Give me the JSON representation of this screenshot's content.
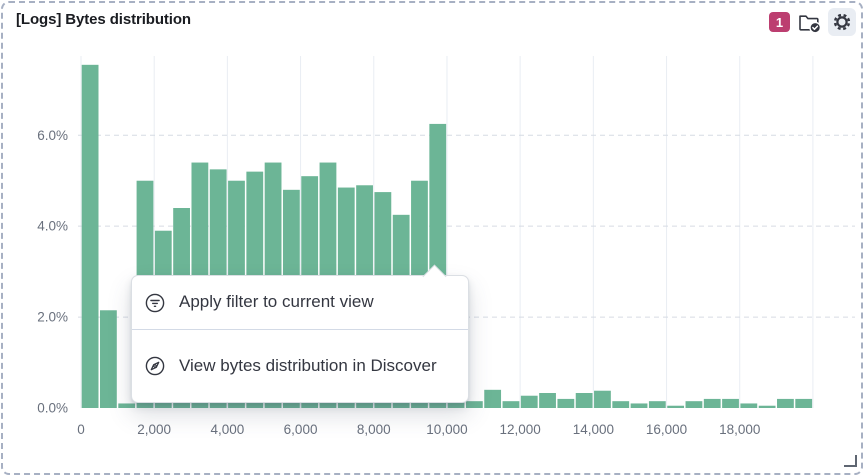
{
  "panel": {
    "title": "[Logs] Bytes distribution",
    "badge_count": "1"
  },
  "context_menu": {
    "items": [
      {
        "icon": "filter-icon",
        "label": "Apply filter to current view"
      },
      {
        "icon": "compass-icon",
        "label": "View bytes distribution in Discover"
      }
    ]
  },
  "colors": {
    "bar": "#6cb596",
    "badge_bg": "#bc3e70",
    "icon_dark": "#343741",
    "axis_text": "#69707d",
    "grid_vertical": "#e9edf3",
    "grid_horizontal": "#d6dbe4",
    "menu_text": "#343741",
    "divider": "#d3dae6",
    "dashed_border": "#a7b0c3"
  },
  "chart_data": {
    "type": "bar",
    "title": "[Logs] Bytes distribution",
    "xlabel": "",
    "ylabel": "",
    "bin_width": 500,
    "x": [
      0,
      500,
      1000,
      1500,
      2000,
      2500,
      3000,
      3500,
      4000,
      4500,
      5000,
      5500,
      6000,
      6500,
      7000,
      7500,
      8000,
      8500,
      9000,
      9500,
      10000,
      10500,
      11000,
      11500,
      12000,
      12500,
      13000,
      13500,
      14000,
      14500,
      15000,
      15500,
      16000,
      16500,
      17000,
      17500,
      18000,
      18500,
      19000,
      19500
    ],
    "values": [
      7.55,
      2.15,
      0.1,
      5.0,
      3.9,
      4.4,
      5.4,
      5.25,
      5.0,
      5.2,
      5.4,
      4.8,
      5.1,
      5.4,
      4.85,
      4.9,
      4.75,
      4.25,
      5.0,
      6.25,
      0.15,
      0.15,
      0.4,
      0.15,
      0.27,
      0.33,
      0.2,
      0.33,
      0.38,
      0.15,
      0.1,
      0.15,
      0.05,
      0.15,
      0.2,
      0.2,
      0.1,
      0.05,
      0.2,
      0.2
    ],
    "x_ticks": [
      {
        "v": 0,
        "label": "0"
      },
      {
        "v": 2000,
        "label": "2,000"
      },
      {
        "v": 4000,
        "label": "4,000"
      },
      {
        "v": 6000,
        "label": "6,000"
      },
      {
        "v": 8000,
        "label": "8,000"
      },
      {
        "v": 10000,
        "label": "10,000"
      },
      {
        "v": 12000,
        "label": "12,000"
      },
      {
        "v": 14000,
        "label": "14,000"
      },
      {
        "v": 16000,
        "label": "16,000"
      },
      {
        "v": 18000,
        "label": "18,000"
      }
    ],
    "y_ticks": [
      {
        "v": 0,
        "label": "0.0%"
      },
      {
        "v": 2,
        "label": "2.0%"
      },
      {
        "v": 4,
        "label": "4.0%"
      },
      {
        "v": 6,
        "label": "6.0%"
      }
    ],
    "x_gridlines": [
      0,
      2000,
      4000,
      6000,
      8000,
      10000,
      12000,
      14000,
      16000,
      18000,
      20000
    ],
    "xlim": [
      0,
      21150
    ],
    "ylim": [
      0,
      7.7
    ],
    "grid": true,
    "legend": false,
    "clicked_bar_x": 9500
  }
}
